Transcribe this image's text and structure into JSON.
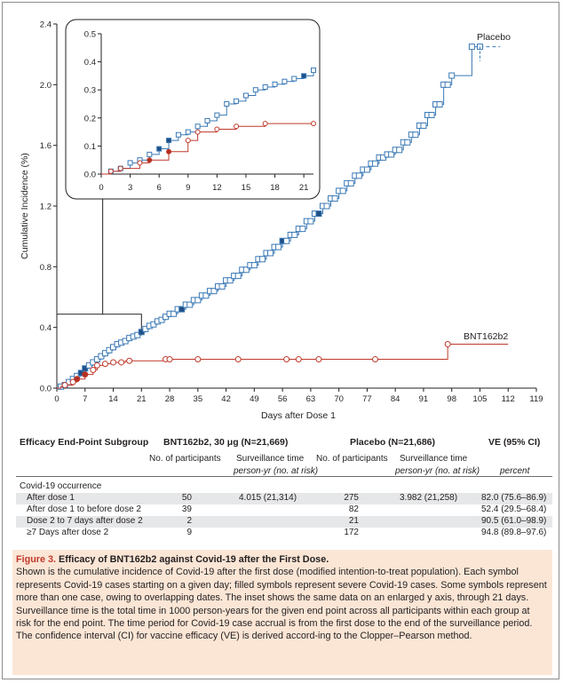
{
  "chart_data": {
    "type": "line",
    "xlabel": "Days after Dose 1",
    "ylabel": "Cumulative Incidence (%)",
    "xlim": [
      0,
      119
    ],
    "ylim": [
      0,
      2.4
    ],
    "xticks": [
      "0",
      "7",
      "14",
      "21",
      "28",
      "35",
      "42",
      "49",
      "56",
      "63",
      "70",
      "77",
      "84",
      "91",
      "98",
      "105",
      "112",
      "119"
    ],
    "yticks": [
      "0.0",
      "0.4",
      "0.8",
      "1.2",
      "1.6",
      "2.0",
      "2.4"
    ],
    "series": [
      {
        "name": "Placebo",
        "color": "#3b79b5",
        "step_x": [
          0,
          1,
          2,
          3,
          4,
          5,
          6,
          7,
          8,
          9,
          10,
          11,
          12,
          13,
          14,
          15,
          16,
          17,
          18,
          19,
          20,
          21,
          22,
          23,
          24,
          25,
          26,
          27,
          28,
          30,
          32,
          34,
          36,
          38,
          40,
          42,
          44,
          46,
          48,
          50,
          52,
          54,
          56,
          58,
          60,
          62,
          64,
          66,
          68,
          70,
          72,
          74,
          76,
          78,
          80,
          82,
          84,
          86,
          88,
          90,
          92,
          94,
          96,
          98,
          103
        ],
        "step_y": [
          0.0,
          0.01,
          0.02,
          0.04,
          0.06,
          0.08,
          0.1,
          0.13,
          0.15,
          0.17,
          0.19,
          0.21,
          0.23,
          0.25,
          0.27,
          0.29,
          0.3,
          0.31,
          0.33,
          0.34,
          0.35,
          0.37,
          0.39,
          0.41,
          0.42,
          0.44,
          0.45,
          0.47,
          0.49,
          0.52,
          0.55,
          0.58,
          0.61,
          0.64,
          0.67,
          0.71,
          0.74,
          0.78,
          0.81,
          0.85,
          0.89,
          0.93,
          0.97,
          1.01,
          1.05,
          1.1,
          1.15,
          1.2,
          1.25,
          1.3,
          1.35,
          1.4,
          1.44,
          1.48,
          1.52,
          1.54,
          1.57,
          1.62,
          1.67,
          1.73,
          1.8,
          1.87,
          2.0,
          2.06,
          2.25
        ],
        "step_end": 105,
        "markers_x": [
          1,
          2,
          3,
          4,
          5,
          6,
          7,
          8,
          9,
          10,
          11,
          12,
          13,
          14,
          15,
          16,
          17,
          18,
          19,
          20,
          21,
          22,
          23,
          24,
          25,
          26,
          27,
          28,
          29,
          30,
          31,
          32,
          33,
          34,
          35,
          36,
          37,
          38,
          39,
          40,
          41,
          42,
          43,
          44,
          45,
          46,
          47,
          48,
          49,
          50,
          51,
          52,
          53,
          54,
          55,
          56,
          57,
          58,
          59,
          60,
          61,
          62,
          63,
          64,
          65,
          66,
          67,
          68,
          69,
          70,
          71,
          72,
          73,
          74,
          75,
          76,
          77,
          78,
          79,
          80,
          81,
          82,
          83,
          84,
          85,
          86,
          87,
          88,
          89,
          90,
          91,
          92,
          93,
          94,
          95,
          96,
          97,
          98,
          103
        ],
        "filled_x": [
          6,
          7,
          21,
          31,
          56,
          65
        ],
        "dash_to": 110
      },
      {
        "name": "BNT162b2",
        "color": "#c0392b",
        "step_x": [
          0,
          1,
          2,
          4,
          5,
          7,
          9,
          10,
          12,
          14,
          17,
          27,
          97,
          112
        ],
        "step_y": [
          0.0,
          0.01,
          0.02,
          0.04,
          0.06,
          0.09,
          0.12,
          0.15,
          0.16,
          0.17,
          0.18,
          0.19,
          0.29,
          0.29
        ],
        "markers_x": [
          2,
          4,
          5,
          7,
          9,
          10,
          12,
          14,
          16,
          18,
          27,
          28,
          35,
          45,
          57,
          60,
          65,
          79,
          97
        ],
        "filled_x": [
          5,
          7,
          62
        ]
      }
    ],
    "inset": {
      "xlim": [
        0,
        22
      ],
      "ylim": [
        0,
        0.5
      ],
      "xticks": [
        "0",
        "3",
        "6",
        "9",
        "12",
        "15",
        "18",
        "21"
      ],
      "yticks": [
        "0.0",
        "0.1",
        "0.2",
        "0.3",
        "0.4",
        "0.5"
      ],
      "placebo_x": [
        1,
        2,
        3,
        4,
        5,
        6,
        7,
        8,
        9,
        10,
        11,
        12,
        13,
        14,
        15,
        16,
        17,
        18,
        19,
        20,
        21,
        22
      ],
      "placebo_y": [
        0.01,
        0.02,
        0.04,
        0.05,
        0.07,
        0.09,
        0.12,
        0.14,
        0.15,
        0.17,
        0.19,
        0.21,
        0.25,
        0.26,
        0.28,
        0.3,
        0.31,
        0.32,
        0.33,
        0.34,
        0.35,
        0.37
      ],
      "placebo_filled": [
        6,
        7,
        21
      ],
      "bnt_x": [
        1,
        2,
        4,
        5,
        7,
        9,
        10,
        12,
        14,
        17,
        22
      ],
      "bnt_y": [
        0.01,
        0.02,
        0.04,
        0.05,
        0.08,
        0.12,
        0.15,
        0.16,
        0.17,
        0.18,
        0.18
      ],
      "bnt_filled": [
        5,
        7
      ]
    }
  },
  "labels": {
    "placebo": "Placebo",
    "bnt": "BNT162b2"
  },
  "table": {
    "col1_header": "Efficacy End-Point Subgroup",
    "bnt_header": "BNT162b2, 30 μg (N=21,669)",
    "placebo_header": "Placebo (N=21,686)",
    "ve_header": "VE (95% CI)",
    "sub_participants": "No. of participants",
    "sub_surveillance": "Surveillance time",
    "sub_person_yr": "person-yr (no. at risk)",
    "sub_percent": "percent",
    "group_label": "Covid-19 occurrence",
    "rows": [
      {
        "label": "After dose 1",
        "bnt_n": "50",
        "bnt_time": "4.015 (21,314)",
        "pl_n": "275",
        "pl_time": "3.982 (21,258)",
        "ve": "82.0 (75.6–86.9)"
      },
      {
        "label": "After dose 1 to before dose 2",
        "bnt_n": "39",
        "bnt_time": "",
        "pl_n": "82",
        "pl_time": "",
        "ve": "52.4 (29.5–68.4)"
      },
      {
        "label": "Dose 2 to 7 days after dose 2",
        "bnt_n": "2",
        "bnt_time": "",
        "pl_n": "21",
        "pl_time": "",
        "ve": "90.5 (61.0–98.9)"
      },
      {
        "label": "≥7 Days after dose 2",
        "bnt_n": "9",
        "bnt_time": "",
        "pl_n": "172",
        "pl_time": "",
        "ve": "94.8 (89.8–97.6)"
      }
    ]
  },
  "caption": {
    "fig": "Figure 3.",
    "title": "Efficacy of BNT162b2 against Covid-19 after the First Dose.",
    "body": "Shown is the cumulative incidence of Covid-19 after the first dose (modified intention-to-treat population). Each symbol represents Covid-19 cases starting on a given day; filled symbols represent severe Covid-19 cases. Some symbols represent more than one case, owing to overlapping dates. The inset shows the same data on an enlarged y axis, through 21 days. Surveillance time is the total time in 1000 person-years for the given end point across all participants within each group at risk for the end point. The time period for Covid-19 case accrual is from the first dose to the end of the surveillance period. The confidence interval (CI) for vaccine efficacy (VE) is derived accord-ing to the Clopper–Pearson method."
  }
}
